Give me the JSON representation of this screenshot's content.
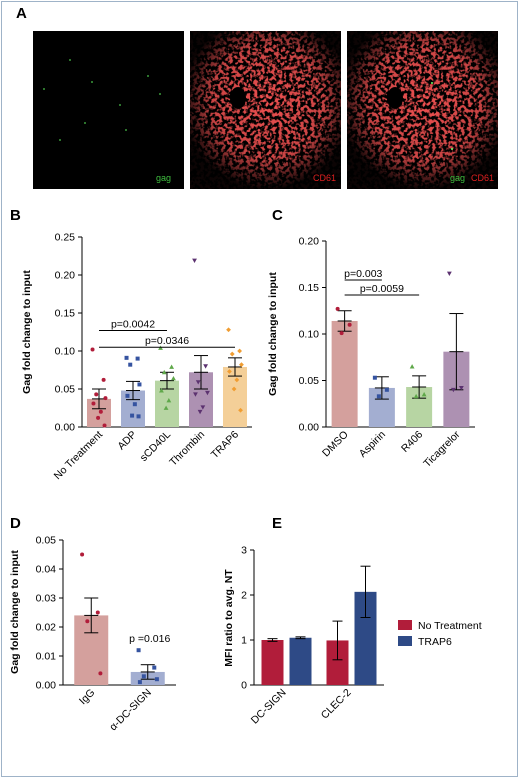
{
  "figure": {
    "panel_a": {
      "letter": "A",
      "images": [
        {
          "label": "gag",
          "label_color": "#3fbf3f"
        },
        {
          "label": "CD61",
          "label_color": "#e02020"
        },
        {
          "label": "gag",
          "label_color": "#3fbf3f",
          "label2": "CD61",
          "label2_color": "#e02020"
        }
      ]
    }
  },
  "chart_data": [
    {
      "panel": "B",
      "type": "bar",
      "ylabel": "Gag fold change to input",
      "ylim": [
        0,
        0.25
      ],
      "yticks": [
        "0.00",
        "0.05",
        "0.10",
        "0.15",
        "0.20",
        "0.25"
      ],
      "categories": [
        "No Treatment",
        "ADP",
        "sCD40L",
        "Thrombin",
        "TRAP6"
      ],
      "colors": [
        "#d4a09d",
        "#a3aed1",
        "#b7d5a3",
        "#ad91b2",
        "#f4cf98"
      ],
      "point_colors": [
        "#b11d3a",
        "#3553a0",
        "#5fa84a",
        "#5c3270",
        "#f09d32"
      ],
      "markers": [
        "circle",
        "square",
        "triangle",
        "triangle-down",
        "diamond"
      ],
      "values": [
        0.037,
        0.048,
        0.061,
        0.072,
        0.079
      ],
      "errors": [
        0.013,
        0.012,
        0.011,
        0.022,
        0.012
      ],
      "points": [
        [
          0.102,
          0.062,
          0.043,
          0.038,
          0.031,
          0.02,
          0.012,
          0.002
        ],
        [
          0.091,
          0.09,
          0.082,
          0.056,
          0.041,
          0.03,
          0.015,
          0.014
        ],
        [
          0.104,
          0.079,
          0.072,
          0.064,
          0.048,
          0.035,
          0.025
        ],
        [
          0.219,
          0.08,
          0.059,
          0.045,
          0.043,
          0.026,
          0.02
        ],
        [
          0.128,
          0.1,
          0.096,
          0.082,
          0.073,
          0.062,
          0.05,
          0.022
        ]
      ],
      "brackets": [
        {
          "from": 0,
          "to": 2,
          "label": "p=0.0042",
          "y": 0.127
        },
        {
          "from": 0,
          "to": 4,
          "label": "p=0.0346",
          "y": 0.105
        }
      ]
    },
    {
      "panel": "C",
      "type": "bar",
      "ylabel": "Gag fold change to input",
      "ylim": [
        0,
        0.2
      ],
      "yticks": [
        "0.00",
        "0.05",
        "0.10",
        "0.15",
        "0.20"
      ],
      "categories": [
        "DMSO",
        "Aspirin",
        "R406",
        "Ticagrelor"
      ],
      "colors": [
        "#d4a09d",
        "#a3aed1",
        "#b7d5a3",
        "#ad91b2"
      ],
      "point_colors": [
        "#b11d3a",
        "#3553a0",
        "#5fa84a",
        "#5c3270"
      ],
      "markers": [
        "circle",
        "square",
        "triangle",
        "triangle-down"
      ],
      "values": [
        0.114,
        0.042,
        0.043,
        0.081
      ],
      "errors": [
        0.011,
        0.012,
        0.012,
        0.041
      ],
      "points": [
        [
          0.127,
          0.11,
          0.101
        ],
        [
          0.053,
          0.04,
          0.033
        ],
        [
          0.065,
          0.035,
          0.033
        ],
        [
          0.165,
          0.042,
          0.04
        ]
      ],
      "brackets": [
        {
          "from": 0,
          "to": 1,
          "label": "p=0.003",
          "y": 0.158
        },
        {
          "from": 0,
          "to": 2,
          "label": "p=0.0059",
          "y": 0.142
        }
      ]
    },
    {
      "panel": "D",
      "type": "bar",
      "ylabel": "Gag fold change to input",
      "ylim": [
        0,
        0.05
      ],
      "yticks": [
        "0.00",
        "0.01",
        "0.02",
        "0.03",
        "0.04",
        "0.05"
      ],
      "categories": [
        "IgG",
        "α-DC-SIGN"
      ],
      "colors": [
        "#d4a09d",
        "#a3aed1"
      ],
      "point_colors": [
        "#b11d3a",
        "#3553a0"
      ],
      "markers": [
        "circle",
        "square"
      ],
      "values": [
        0.024,
        0.0045
      ],
      "errors": [
        0.006,
        0.0025
      ],
      "points": [
        [
          0.045,
          0.025,
          0.022,
          0.004
        ],
        [
          0.012,
          0.006,
          0.003,
          0.002,
          0.001
        ]
      ],
      "annotation": "p =0.016"
    },
    {
      "panel": "E",
      "type": "bar",
      "ylabel": "MFI ratio to avg. NT",
      "ylim": [
        0,
        3
      ],
      "yticks": [
        "0",
        "1",
        "2",
        "3"
      ],
      "categories": [
        "DC-SIGN",
        "CLEC-2"
      ],
      "series": [
        {
          "name": "No Treatment",
          "color": "#b11d3a",
          "values": [
            1.0,
            0.99
          ],
          "errors": [
            0.03,
            0.43
          ]
        },
        {
          "name": "TRAP6",
          "color": "#2e4a86",
          "values": [
            1.05,
            2.07
          ],
          "errors": [
            0.02,
            0.57
          ]
        }
      ],
      "legend": "right"
    }
  ]
}
